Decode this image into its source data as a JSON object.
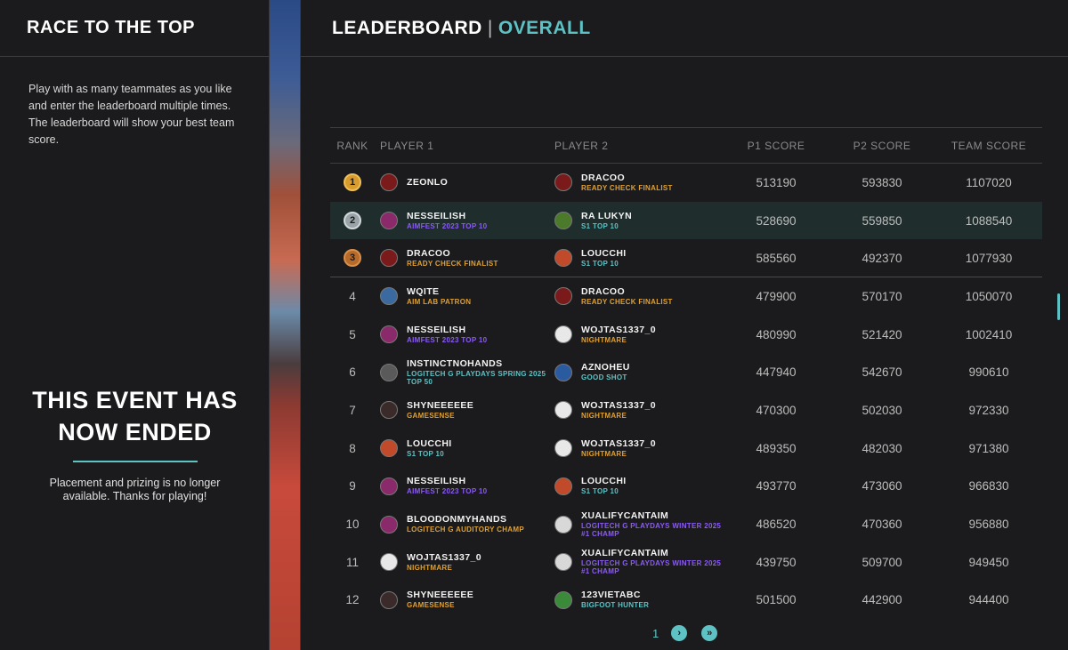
{
  "left": {
    "title": "RACE TO THE TOP",
    "description": "Play with as many teammates as you like and enter the leaderboard multiple times. The leaderboard will show your best team score.",
    "ended_title": "THIS EVENT HAS NOW ENDED",
    "ended_sub": "Placement and prizing is no longer available. Thanks for playing!"
  },
  "header": {
    "main": "LEADERBOARD",
    "separator": "|",
    "sub": "OVERALL"
  },
  "columns": {
    "rank": "RANK",
    "player1": "PLAYER 1",
    "player2": "PLAYER 2",
    "p1_score": "P1 SCORE",
    "p2_score": "P2 SCORE",
    "team_score": "TEAM SCORE"
  },
  "colors": {
    "accent": "#5ec2c4",
    "gold_tag": "#e0a030",
    "purple_tag": "#8a5cf0",
    "teal_tag": "#5ec2c4",
    "highlight_row": "#1f2d2d"
  },
  "rows": [
    {
      "rank": "1",
      "medal": "gold",
      "p1": {
        "name": "ZEONLO",
        "tag": "",
        "tag_color": "",
        "avatar": "#7a1a1a"
      },
      "p2": {
        "name": "DRACOO",
        "tag": "READY CHECK FINALIST",
        "tag_color": "#e0a030",
        "avatar": "#7a1a1a"
      },
      "s1": "513190",
      "s2": "593830",
      "team": "1107020"
    },
    {
      "rank": "2",
      "medal": "silver",
      "p1": {
        "name": "NESSEILISH",
        "tag": "AIMFEST 2023 TOP 10",
        "tag_color": "#8a5cf0",
        "avatar": "#8a2a6a"
      },
      "p2": {
        "name": "RA LUKYN",
        "tag": "S1 TOP 10",
        "tag_color": "#5ec2c4",
        "avatar": "#4a7a2a"
      },
      "s1": "528690",
      "s2": "559850",
      "team": "1088540"
    },
    {
      "rank": "3",
      "medal": "bronze",
      "p1": {
        "name": "DRACOO",
        "tag": "READY CHECK FINALIST",
        "tag_color": "#e0a030",
        "avatar": "#7a1a1a"
      },
      "p2": {
        "name": "LOUCCHI",
        "tag": "S1 TOP 10",
        "tag_color": "#5ec2c4",
        "avatar": "#c04a2a"
      },
      "s1": "585560",
      "s2": "492370",
      "team": "1077930"
    },
    {
      "rank": "4",
      "medal": "",
      "p1": {
        "name": "WQITE",
        "tag": "AIM LAB PATRON",
        "tag_color": "#e0a030",
        "avatar": "#3a6aa0"
      },
      "p2": {
        "name": "DRACOO",
        "tag": "READY CHECK FINALIST",
        "tag_color": "#e0a030",
        "avatar": "#7a1a1a"
      },
      "s1": "479900",
      "s2": "570170",
      "team": "1050070"
    },
    {
      "rank": "5",
      "medal": "",
      "p1": {
        "name": "NESSEILISH",
        "tag": "AIMFEST 2023 TOP 10",
        "tag_color": "#8a5cf0",
        "avatar": "#8a2a6a"
      },
      "p2": {
        "name": "WOJTAS1337_0",
        "tag": "NIGHTMARE",
        "tag_color": "#e0a030",
        "avatar": "#e8e8e8"
      },
      "s1": "480990",
      "s2": "521420",
      "team": "1002410"
    },
    {
      "rank": "6",
      "medal": "",
      "p1": {
        "name": "INSTINCTNOHANDS",
        "tag": "LOGITECH G PLAYDAYS SPRING 2025 TOP 50",
        "tag_color": "#5ec2c4",
        "avatar": "#5a5a5a"
      },
      "p2": {
        "name": "AZNOHEU",
        "tag": "GOOD SHOT",
        "tag_color": "#5ec2c4",
        "avatar": "#2a5aa0"
      },
      "s1": "447940",
      "s2": "542670",
      "team": "990610"
    },
    {
      "rank": "7",
      "medal": "",
      "p1": {
        "name": "SHYNEEEEEE",
        "tag": "GAMESENSE",
        "tag_color": "#e0a030",
        "avatar": "#3a2a2a"
      },
      "p2": {
        "name": "WOJTAS1337_0",
        "tag": "NIGHTMARE",
        "tag_color": "#e0a030",
        "avatar": "#e8e8e8"
      },
      "s1": "470300",
      "s2": "502030",
      "team": "972330"
    },
    {
      "rank": "8",
      "medal": "",
      "p1": {
        "name": "LOUCCHI",
        "tag": "S1 TOP 10",
        "tag_color": "#5ec2c4",
        "avatar": "#c04a2a"
      },
      "p2": {
        "name": "WOJTAS1337_0",
        "tag": "NIGHTMARE",
        "tag_color": "#e0a030",
        "avatar": "#e8e8e8"
      },
      "s1": "489350",
      "s2": "482030",
      "team": "971380"
    },
    {
      "rank": "9",
      "medal": "",
      "p1": {
        "name": "NESSEILISH",
        "tag": "AIMFEST 2023 TOP 10",
        "tag_color": "#8a5cf0",
        "avatar": "#8a2a6a"
      },
      "p2": {
        "name": "LOUCCHI",
        "tag": "S1 TOP 10",
        "tag_color": "#5ec2c4",
        "avatar": "#c04a2a"
      },
      "s1": "493770",
      "s2": "473060",
      "team": "966830"
    },
    {
      "rank": "10",
      "medal": "",
      "p1": {
        "name": "BLOODONMYHANDS",
        "tag": "LOGITECH G AUDITORY CHAMP",
        "tag_color": "#e0a030",
        "avatar": "#8a2a6a"
      },
      "p2": {
        "name": "XUALIFYCANTAIM",
        "tag": "LOGITECH G PLAYDAYS WINTER 2025 #1 CHAMP",
        "tag_color": "#8a5cf0",
        "avatar": "#d8d8d8"
      },
      "s1": "486520",
      "s2": "470360",
      "team": "956880"
    },
    {
      "rank": "11",
      "medal": "",
      "p1": {
        "name": "WOJTAS1337_0",
        "tag": "NIGHTMARE",
        "tag_color": "#e0a030",
        "avatar": "#e8e8e8"
      },
      "p2": {
        "name": "XUALIFYCANTAIM",
        "tag": "LOGITECH G PLAYDAYS WINTER 2025 #1 CHAMP",
        "tag_color": "#8a5cf0",
        "avatar": "#d8d8d8"
      },
      "s1": "439750",
      "s2": "509700",
      "team": "949450"
    },
    {
      "rank": "12",
      "medal": "",
      "p1": {
        "name": "SHYNEEEEEE",
        "tag": "GAMESENSE",
        "tag_color": "#e0a030",
        "avatar": "#3a2a2a"
      },
      "p2": {
        "name": "123VIETABC",
        "tag": "BIGFOOT HUNTER",
        "tag_color": "#5ec2c4",
        "avatar": "#3a8a3a"
      },
      "s1": "501500",
      "s2": "442900",
      "team": "944400"
    }
  ],
  "pagination": {
    "current_page": "1",
    "next_icon": "chevron-right-icon",
    "last_icon": "double-chevron-right-icon"
  }
}
